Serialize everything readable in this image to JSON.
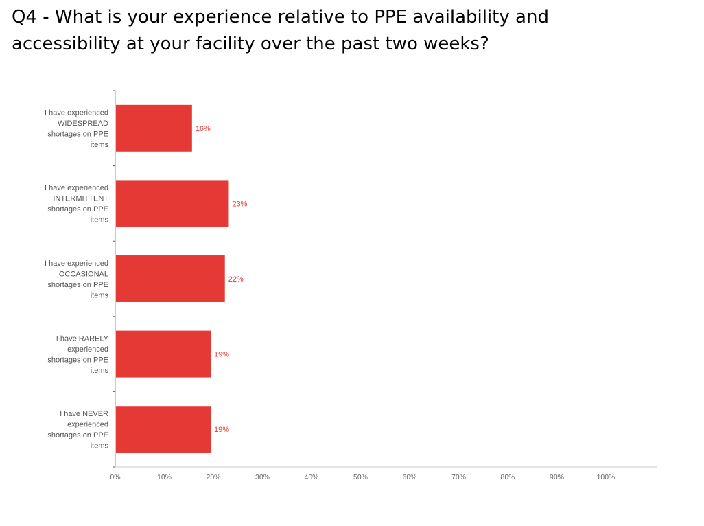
{
  "title": "Q4 - What is your experience relative to PPE availability and accessibility at your facility over the past two weeks?",
  "colors": {
    "bar": "#e53935",
    "label": "#e53935",
    "axis": "#999999"
  },
  "chart_data": {
    "type": "bar",
    "orientation": "horizontal",
    "categories": [
      [
        "I have experienced",
        "WIDESPREAD",
        "shortages on PPE",
        "items"
      ],
      [
        "I have experienced",
        "INTERMITTENT",
        "shortages on PPE",
        "items"
      ],
      [
        "I have experienced",
        "OCCASIONAL",
        "shortages on PPE",
        "items"
      ],
      [
        "I have RARELY",
        "experienced",
        "shortages on PPE",
        "items"
      ],
      [
        "I have NEVER",
        "experienced",
        "shortages on PPE",
        "items"
      ]
    ],
    "values": [
      15.5,
      23,
      22.2,
      19.3,
      19.3
    ],
    "data_labels": [
      "16%",
      "23%",
      "22%",
      "19%",
      "19%"
    ],
    "x_ticks": [
      "0%",
      "10%",
      "20%",
      "30%",
      "40%",
      "50%",
      "60%",
      "70%",
      "80%",
      "90%",
      "100%"
    ],
    "xlim": [
      0,
      110
    ],
    "grid": false
  }
}
